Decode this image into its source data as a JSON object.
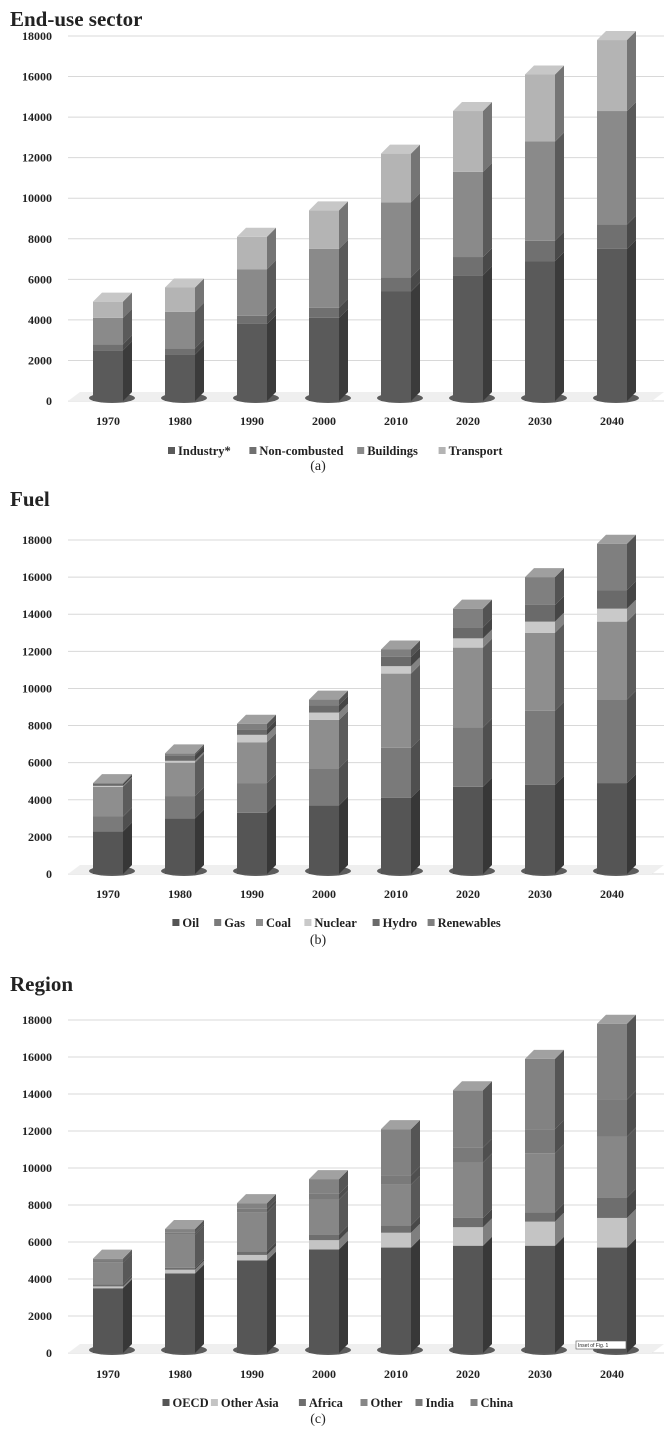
{
  "chart_data": [
    {
      "type": "bar",
      "stacked": true,
      "style": "3d-columns",
      "title": "End-use sector",
      "caption": "(a)",
      "categories": [
        "1970",
        "1980",
        "1990",
        "2000",
        "2010",
        "2020",
        "2030",
        "2040"
      ],
      "ylim": [
        0,
        18000
      ],
      "yticks": [
        "0",
        "2000",
        "4000",
        "6000",
        "8000",
        "10000",
        "12000",
        "14000",
        "16000",
        "18000"
      ],
      "grid": true,
      "legend_position": "bottom",
      "series": [
        {
          "name": "Industry*",
          "color": "#5a5a5a",
          "values": [
            2500,
            2300,
            3800,
            4100,
            5400,
            6200,
            6900,
            7500
          ]
        },
        {
          "name": "Non-combusted",
          "color": "#707070",
          "values": [
            300,
            300,
            400,
            500,
            700,
            900,
            1000,
            1200
          ]
        },
        {
          "name": "Buildings",
          "color": "#8a8a8a",
          "values": [
            1300,
            1800,
            2300,
            2900,
            3700,
            4200,
            4900,
            5600
          ]
        },
        {
          "name": "Transport",
          "color": "#b4b4b4",
          "values": [
            800,
            1200,
            1600,
            1900,
            2400,
            3000,
            3300,
            3500
          ]
        }
      ]
    },
    {
      "type": "bar",
      "stacked": true,
      "style": "3d-columns",
      "title": "Fuel",
      "caption": "(b)",
      "categories": [
        "1970",
        "1980",
        "1990",
        "2000",
        "2010",
        "2020",
        "2030",
        "2040"
      ],
      "ylim": [
        0,
        18000
      ],
      "yticks": [
        "0",
        "2000",
        "4000",
        "6000",
        "8000",
        "10000",
        "12000",
        "14000",
        "16000",
        "18000"
      ],
      "grid": true,
      "legend_position": "bottom",
      "series": [
        {
          "name": "Oil",
          "color": "#555555",
          "values": [
            2300,
            3000,
            3300,
            3700,
            4100,
            4700,
            4800,
            4900
          ]
        },
        {
          "name": "Gas",
          "color": "#7a7a7a",
          "values": [
            800,
            1200,
            1600,
            2000,
            2700,
            3200,
            4000,
            4500
          ]
        },
        {
          "name": "Coal",
          "color": "#8e8e8e",
          "values": [
            1600,
            1800,
            2200,
            2600,
            4000,
            4300,
            4200,
            4200
          ]
        },
        {
          "name": "Nuclear",
          "color": "#c9c9c9",
          "values": [
            50,
            100,
            400,
            400,
            400,
            500,
            600,
            700
          ]
        },
        {
          "name": "Hydro",
          "color": "#6a6a6a",
          "values": [
            100,
            300,
            300,
            400,
            500,
            600,
            900,
            1000
          ]
        },
        {
          "name": "Renewables",
          "color": "#7f7f7f",
          "values": [
            50,
            100,
            300,
            300,
            400,
            1000,
            1500,
            2500
          ]
        }
      ]
    },
    {
      "type": "bar",
      "stacked": true,
      "style": "3d-columns",
      "title": "Region",
      "caption": "(c)",
      "categories": [
        "1970",
        "1980",
        "1990",
        "2000",
        "2010",
        "2020",
        "2030",
        "2040"
      ],
      "ylim": [
        0,
        18000
      ],
      "yticks": [
        "0",
        "2000",
        "4000",
        "6000",
        "8000",
        "10000",
        "12000",
        "14000",
        "16000",
        "18000"
      ],
      "grid": true,
      "legend_position": "bottom",
      "annotation": "Inset of Fig. 1",
      "series": [
        {
          "name": "OECD",
          "color": "#565656",
          "values": [
            3500,
            4300,
            5000,
            5600,
            5700,
            5800,
            5800,
            5700
          ]
        },
        {
          "name": "Other Asia",
          "color": "#c4c4c4",
          "values": [
            100,
            200,
            300,
            500,
            800,
            1000,
            1300,
            1600
          ]
        },
        {
          "name": "Africa",
          "color": "#6e6e6e",
          "values": [
            100,
            100,
            200,
            300,
            400,
            500,
            500,
            1100
          ]
        },
        {
          "name": "Other",
          "color": "#878787",
          "values": [
            1200,
            1800,
            2100,
            1900,
            2200,
            3000,
            3200,
            3300
          ]
        },
        {
          "name": "India",
          "color": "#7a7a7a",
          "values": [
            100,
            100,
            200,
            300,
            500,
            800,
            1300,
            2000
          ]
        },
        {
          "name": "China",
          "color": "#828282",
          "values": [
            100,
            200,
            300,
            800,
            2500,
            3100,
            3800,
            4100
          ]
        }
      ]
    }
  ]
}
